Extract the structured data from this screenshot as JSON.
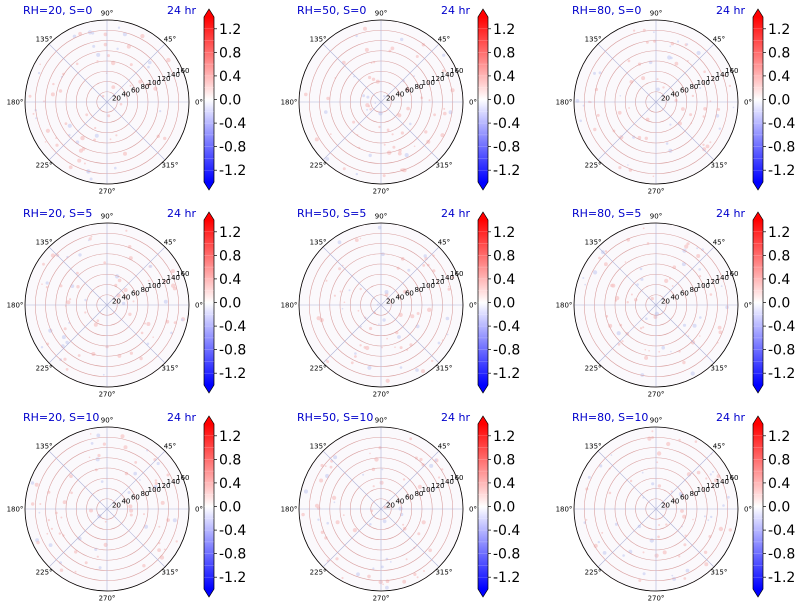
{
  "chart_data": {
    "type": "polar-heatmap",
    "panel_time_label": "24 hr",
    "colormap": "bwr",
    "color_range": [
      -1.4,
      1.4
    ],
    "colorbar_ticks": [
      "1.2",
      "0.8",
      "0.4",
      "0.0",
      "-0.4",
      "-0.8",
      "-1.2"
    ],
    "angle_labels": [
      "0°",
      "45°",
      "90°",
      "135°",
      "180°",
      "225°",
      "270°",
      "315°"
    ],
    "radial_ticks": [
      "20",
      "40",
      "60",
      "80",
      "100",
      "120",
      "140",
      "160"
    ],
    "radial_max": 160,
    "colors": {
      "title": "#0000cc",
      "ring_grid": "#d9a0a0",
      "spoke_grid": "#b0b4d8"
    },
    "panels": [
      {
        "title": "RH=20, S=0",
        "RH": 20,
        "S": 0
      },
      {
        "title": "RH=50, S=0",
        "RH": 50,
        "S": 0
      },
      {
        "title": "RH=80, S=0",
        "RH": 80,
        "S": 0
      },
      {
        "title": "RH=20, S=5",
        "RH": 20,
        "S": 5
      },
      {
        "title": "RH=50, S=5",
        "RH": 50,
        "S": 5
      },
      {
        "title": "RH=80, S=5",
        "RH": 80,
        "S": 5
      },
      {
        "title": "RH=20, S=10",
        "RH": 20,
        "S": 10
      },
      {
        "title": "RH=50, S=10",
        "RH": 50,
        "S": 10
      },
      {
        "title": "RH=80, S=10",
        "RH": 80,
        "S": 10
      }
    ]
  }
}
